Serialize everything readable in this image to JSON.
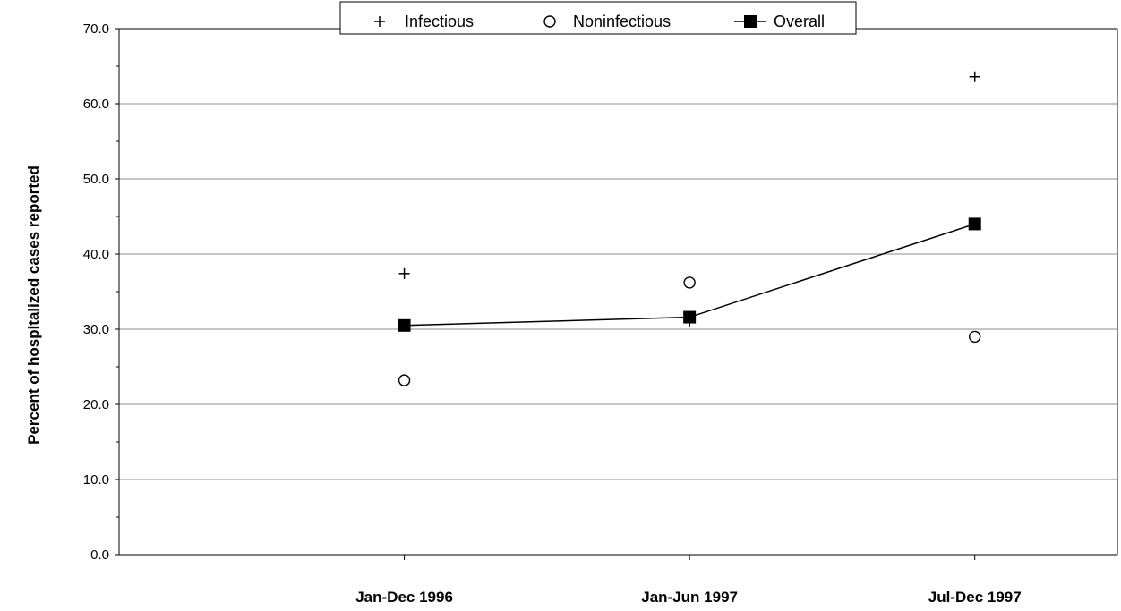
{
  "chart_data": {
    "type": "line",
    "title": "",
    "xlabel": "",
    "ylabel": "Percent of hospitalized cases reported",
    "categories": [
      "Jan-Dec 1996",
      "Jan-Jun 1997",
      "Jul-Dec 1997"
    ],
    "ylim": [
      0,
      70
    ],
    "yticks": [
      "0.0",
      "10.0",
      "20.0",
      "30.0",
      "40.0",
      "50.0",
      "60.0",
      "70.0"
    ],
    "grid": true,
    "legend_position": "top",
    "series": [
      {
        "name": "Infectious",
        "marker": "plus",
        "line": false,
        "values": [
          37.4,
          31.0,
          63.6
        ]
      },
      {
        "name": "Noninfectious",
        "marker": "circle",
        "line": false,
        "values": [
          23.2,
          36.2,
          29.0
        ]
      },
      {
        "name": "Overall",
        "marker": "square",
        "line": true,
        "values": [
          30.5,
          31.6,
          44.0
        ]
      }
    ]
  }
}
